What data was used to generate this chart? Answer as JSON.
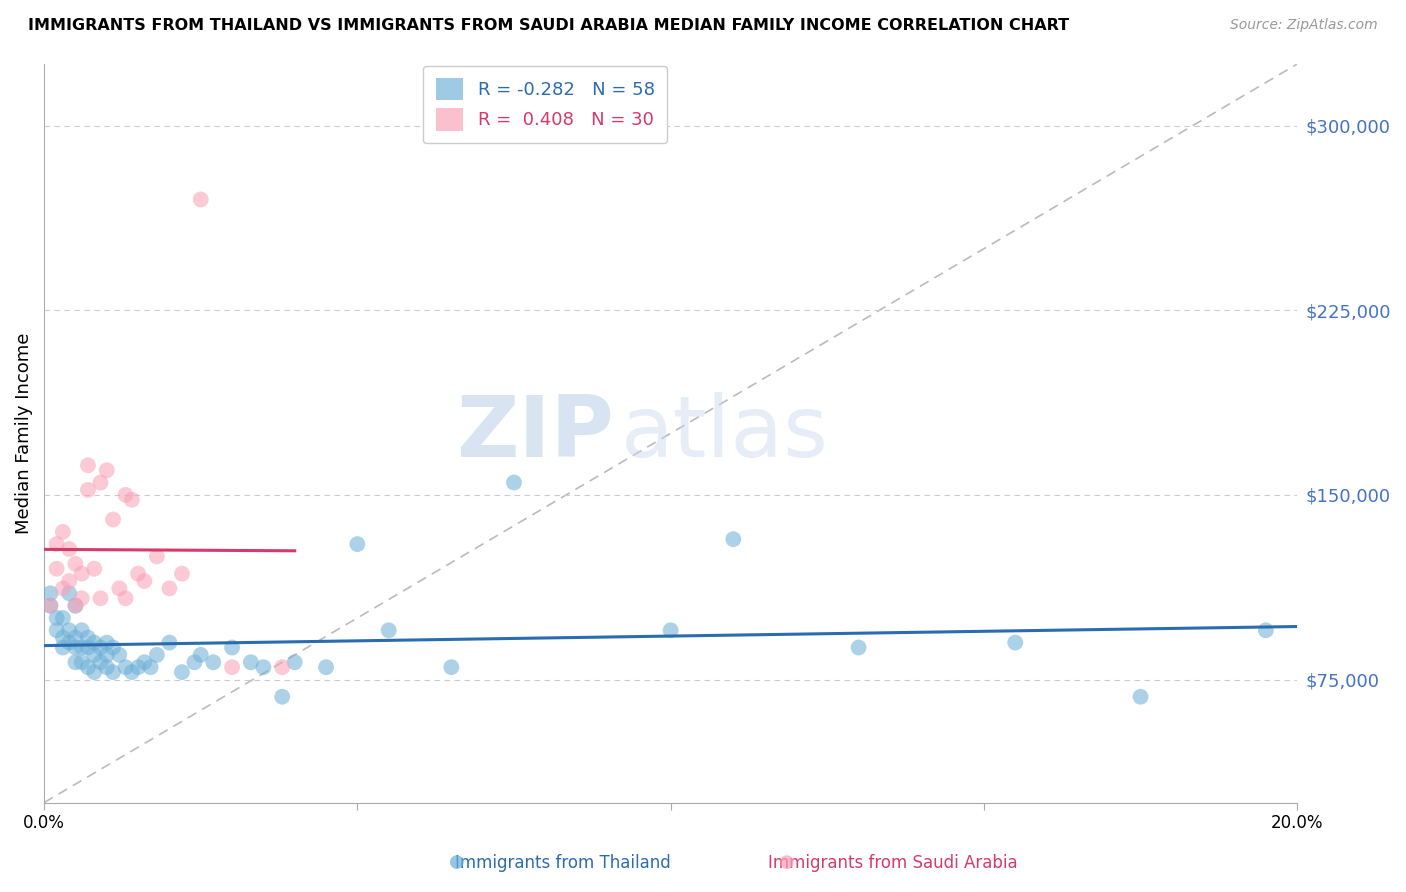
{
  "title": "IMMIGRANTS FROM THAILAND VS IMMIGRANTS FROM SAUDI ARABIA MEDIAN FAMILY INCOME CORRELATION CHART",
  "source": "Source: ZipAtlas.com",
  "ylabel": "Median Family Income",
  "xlabel_thailand": "Immigrants from Thailand",
  "xlabel_saudi": "Immigrants from Saudi Arabia",
  "xlim": [
    0.0,
    0.2
  ],
  "ylim": [
    25000,
    325000
  ],
  "yticks": [
    75000,
    150000,
    225000,
    300000
  ],
  "xticks": [
    0.0,
    0.05,
    0.1,
    0.15,
    0.2
  ],
  "legend_r_thailand": "-0.282",
  "legend_n_thailand": "58",
  "legend_r_saudi": "0.408",
  "legend_n_saudi": "30",
  "color_thailand": "#6baed6",
  "color_saudi": "#fa9fb5",
  "color_trendline_thailand": "#2b6cb0",
  "color_trendline_saudi": "#d63a6a",
  "color_diagonal": "#bbbbbb",
  "color_ytick_labels": "#4472c4",
  "watermark_zip": "ZIP",
  "watermark_atlas": "atlas",
  "thailand_x": [
    0.001,
    0.001,
    0.002,
    0.002,
    0.003,
    0.003,
    0.003,
    0.004,
    0.004,
    0.004,
    0.005,
    0.005,
    0.005,
    0.005,
    0.006,
    0.006,
    0.006,
    0.007,
    0.007,
    0.007,
    0.008,
    0.008,
    0.008,
    0.009,
    0.009,
    0.01,
    0.01,
    0.01,
    0.011,
    0.011,
    0.012,
    0.013,
    0.014,
    0.015,
    0.016,
    0.017,
    0.018,
    0.02,
    0.022,
    0.024,
    0.025,
    0.027,
    0.03,
    0.033,
    0.035,
    0.038,
    0.04,
    0.045,
    0.05,
    0.055,
    0.065,
    0.075,
    0.1,
    0.11,
    0.13,
    0.155,
    0.175,
    0.195
  ],
  "thailand_y": [
    110000,
    105000,
    100000,
    95000,
    100000,
    92000,
    88000,
    110000,
    95000,
    90000,
    105000,
    92000,
    88000,
    82000,
    95000,
    88000,
    82000,
    92000,
    88000,
    80000,
    90000,
    85000,
    78000,
    88000,
    82000,
    90000,
    85000,
    80000,
    88000,
    78000,
    85000,
    80000,
    78000,
    80000,
    82000,
    80000,
    85000,
    90000,
    78000,
    82000,
    85000,
    82000,
    88000,
    82000,
    80000,
    68000,
    82000,
    80000,
    130000,
    95000,
    80000,
    155000,
    95000,
    132000,
    88000,
    90000,
    68000,
    95000
  ],
  "saudi_x": [
    0.001,
    0.002,
    0.002,
    0.003,
    0.003,
    0.004,
    0.004,
    0.005,
    0.005,
    0.006,
    0.006,
    0.007,
    0.007,
    0.008,
    0.009,
    0.009,
    0.01,
    0.011,
    0.012,
    0.013,
    0.013,
    0.014,
    0.015,
    0.016,
    0.018,
    0.02,
    0.022,
    0.025,
    0.03,
    0.038
  ],
  "saudi_y": [
    105000,
    120000,
    130000,
    112000,
    135000,
    115000,
    128000,
    105000,
    122000,
    118000,
    108000,
    152000,
    162000,
    120000,
    108000,
    155000,
    160000,
    140000,
    112000,
    108000,
    150000,
    148000,
    118000,
    115000,
    125000,
    112000,
    118000,
    270000,
    80000,
    80000
  ]
}
